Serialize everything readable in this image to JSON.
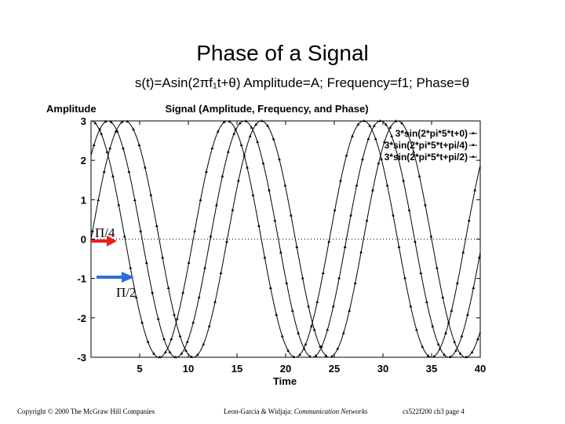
{
  "slide": {
    "title": "Phase of a Signal",
    "subtitle": "s(t)=Asin(2πf₁t+θ) Amplitude=A; Frequency=f1; Phase=θ",
    "footer_left": "Copyright © 2000 The McGraw Hill Companies",
    "footer_middle_prefix": "Leon-Garcia & Widjaja: ",
    "footer_middle_book": "Communication Networks",
    "footer_right": "cs522f200 ch3 page 4"
  },
  "annotations": {
    "pi_over_4": "Π/4",
    "pi_over_2": "Π/2",
    "color_red": "#e8201c",
    "color_blue": "#2b6fd6"
  },
  "chart_data": {
    "type": "line",
    "title": "Signal (Amplitude, Frequency, and Phase)",
    "xlabel": "Time",
    "ylabel": "Amplitude",
    "xlim": [
      0,
      40
    ],
    "ylim": [
      -3,
      3
    ],
    "x_ticks": [
      5,
      10,
      15,
      20,
      25,
      30,
      35,
      40
    ],
    "y_ticks": [
      3,
      2,
      1,
      0,
      -1,
      -2,
      -3
    ],
    "grid": false,
    "zero_line": "dotted",
    "legend_position": "top-right",
    "series": [
      {
        "name": "3*sin(2*pi*5*t+0)",
        "amplitude": 3,
        "frequency": 5,
        "phase": 0
      },
      {
        "name": "3*sin(2*pi*5*t+pi/4)",
        "amplitude": 3,
        "frequency": 5,
        "phase": 0.7854
      },
      {
        "name": "3*sin(2*pi*5*t+pi/2)",
        "amplitude": 3,
        "frequency": 5,
        "phase": 1.5708
      }
    ]
  }
}
